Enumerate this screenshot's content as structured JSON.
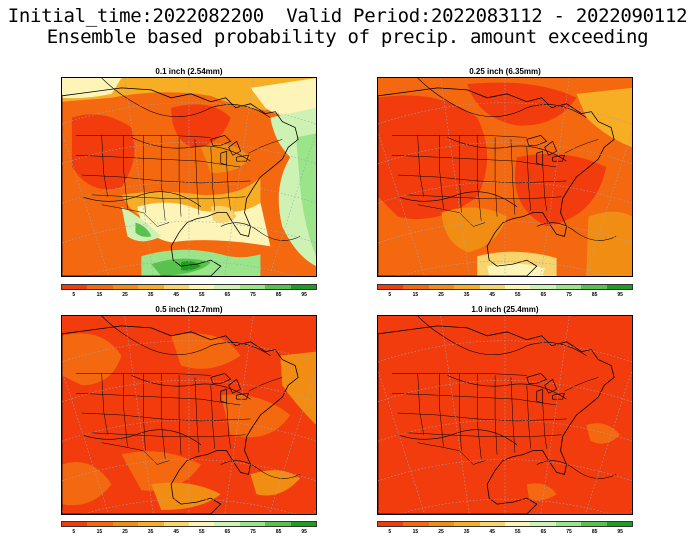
{
  "header": {
    "line1": "Initial_time:2022082200  Valid Period:2022083112 - 2022090112",
    "line2": "Ensemble based probability of precip. amount exceeding"
  },
  "colorbar": {
    "labels": [
      "5",
      "15",
      "25",
      "35",
      "45",
      "55",
      "65",
      "75",
      "85",
      "95"
    ],
    "colors": [
      "#f23c0e",
      "#f4680f",
      "#f28d14",
      "#f7ad24",
      "#f9d36b",
      "#fdf4b8",
      "#cdf2b4",
      "#9ae489",
      "#58c24c",
      "#1e9e1e"
    ]
  },
  "panels": [
    {
      "title": "0.1 inch (2.54mm)",
      "scheme": "p01"
    },
    {
      "title": "0.25 inch (6.35mm)",
      "scheme": "p025"
    },
    {
      "title": "0.5 inch (12.7mm)",
      "scheme": "p05"
    },
    {
      "title": "1.0 inch (25.4mm)",
      "scheme": "p10"
    }
  ]
}
